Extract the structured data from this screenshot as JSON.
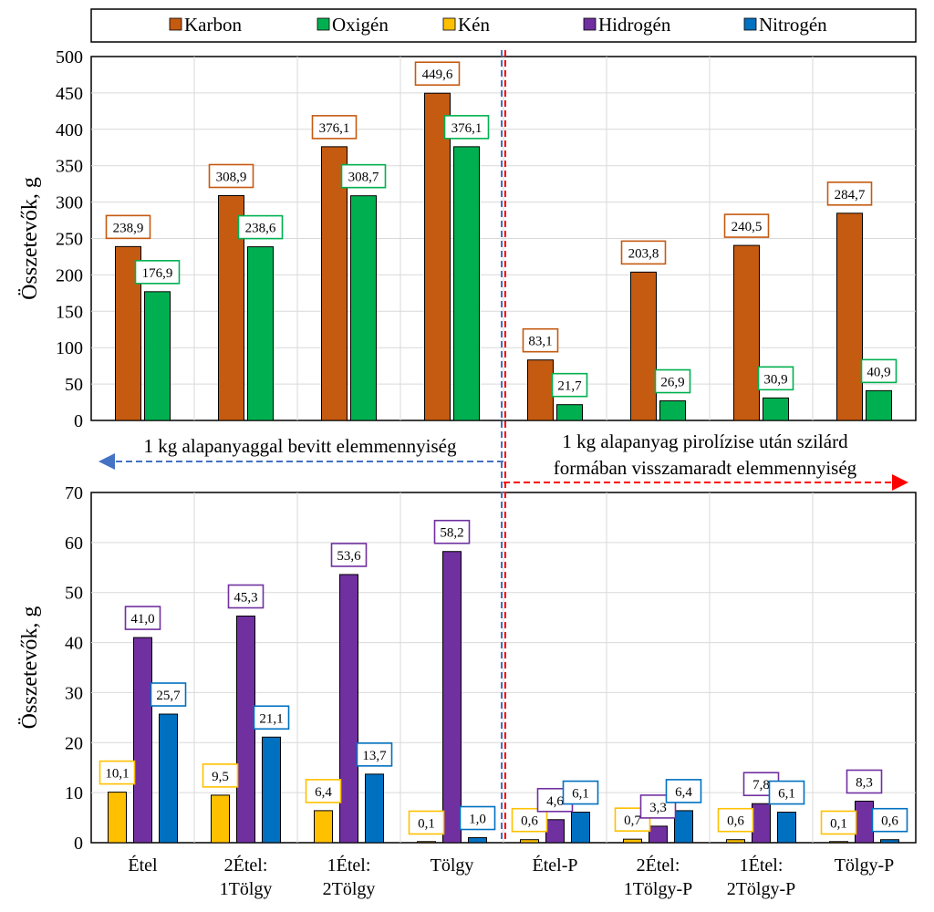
{
  "chart_data": [
    {
      "type": "bar",
      "panel": "top",
      "categories": [
        "Étel",
        "2Étel:\n1Tölgy",
        "1Étel:\n2Tölgy",
        "Tölgy",
        "Étel-P",
        "2Étel:\n1Tölgy-P",
        "1Étel:\n2Tölgy-P",
        "Tölgy-P"
      ],
      "series": [
        {
          "name": "Karbon",
          "color": "#C55A11",
          "values": [
            238.9,
            308.9,
            376.1,
            449.6,
            83.1,
            203.8,
            240.5,
            284.7
          ],
          "labels": [
            "238,9",
            "308,9",
            "376,1",
            "449,6",
            "83,1",
            "203,8",
            "240,5",
            "284,7"
          ]
        },
        {
          "name": "Oxigén",
          "color": "#00B050",
          "values": [
            176.9,
            238.6,
            308.7,
            376.1,
            21.7,
            26.9,
            30.9,
            40.9
          ],
          "labels": [
            "176,9",
            "238,6",
            "308,7",
            "376,1",
            "21,7",
            "26,9",
            "30,9",
            "40,9"
          ]
        }
      ],
      "ylabel": "Összetevők, g",
      "ylim": [
        0,
        500
      ],
      "yticks": [
        0,
        50,
        100,
        150,
        200,
        250,
        300,
        350,
        400,
        450,
        500
      ],
      "grid": true
    },
    {
      "type": "bar",
      "panel": "bottom",
      "categories": [
        "Étel",
        "2Étel:\n1Tölgy",
        "1Étel:\n2Tölgy",
        "Tölgy",
        "Étel-P",
        "2Étel:\n1Tölgy-P",
        "1Étel:\n2Tölgy-P",
        "Tölgy-P"
      ],
      "series": [
        {
          "name": "Kén",
          "color": "#FFC000",
          "values": [
            10.1,
            9.5,
            6.4,
            0.1,
            0.6,
            0.7,
            0.6,
            0.1
          ],
          "labels": [
            "10,1",
            "9,5",
            "6,4",
            "0,1",
            "0,6",
            "0,7",
            "0,6",
            "0,1"
          ]
        },
        {
          "name": "Hidrogén",
          "color": "#7030A0",
          "values": [
            41.0,
            45.3,
            53.6,
            58.2,
            4.6,
            3.3,
            7.8,
            8.3
          ],
          "labels": [
            "41,0",
            "45,3",
            "53,6",
            "58,2",
            "4,6",
            "3,3",
            "7,8",
            "8,3"
          ]
        },
        {
          "name": "Nitrogén",
          "color": "#0070C0",
          "values": [
            25.7,
            21.1,
            13.7,
            1.0,
            6.1,
            6.4,
            6.1,
            0.6
          ],
          "labels": [
            "25,7",
            "21,1",
            "13,7",
            "1,0",
            "6,1",
            "6,4",
            "6,1",
            "0,6"
          ]
        }
      ],
      "ylabel": "Összetevők, g",
      "ylim": [
        0,
        70
      ],
      "yticks": [
        0,
        10,
        20,
        30,
        40,
        50,
        60,
        70
      ],
      "grid": true
    }
  ],
  "legend": {
    "placement": "top",
    "items": [
      {
        "label": "Karbon",
        "color": "#C55A11"
      },
      {
        "label": "Oxigén",
        "color": "#00B050"
      },
      {
        "label": "Kén",
        "color": "#FFC000"
      },
      {
        "label": "Hidrogén",
        "color": "#7030A0"
      },
      {
        "label": "Nitrogén",
        "color": "#0070C0"
      }
    ]
  },
  "annotations": {
    "left_text": "1 kg alapanyaggal bevitt elemmennyiség",
    "right_text_line1": "1 kg alapanyag pirolízise után szilárd",
    "right_text_line2": "formában visszamaradt elemmennyiség",
    "left_arrow_color": "#4472C4",
    "right_arrow_color": "#FF0000",
    "divider_colors": [
      "#4472C4",
      "#FF0000"
    ]
  }
}
